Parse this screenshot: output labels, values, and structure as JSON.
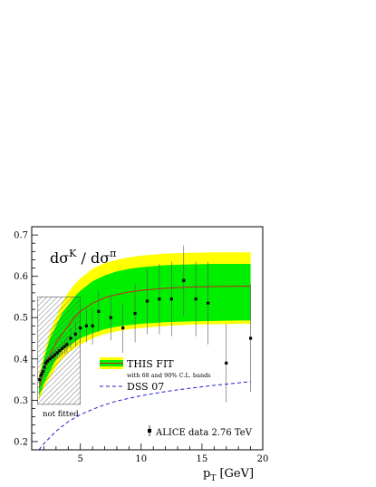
{
  "chart_data": {
    "type": "line",
    "title_main": "dσ",
    "title_sup1": "K",
    "title_sep": " / dσ",
    "title_sup2": "π",
    "xlabel_main": "p",
    "xlabel_sub": "T",
    "xlabel_unit": " [GeV]",
    "xlim": [
      1,
      20
    ],
    "ylim": [
      0.18,
      0.72
    ],
    "x_ticks": [
      5,
      10,
      15,
      20
    ],
    "y_ticks": [
      0.2,
      0.3,
      0.4,
      0.5,
      0.6,
      0.7
    ],
    "not_fitted_region": {
      "x_range": [
        1.5,
        5.0
      ],
      "y_range": [
        0.29,
        0.55
      ],
      "label": "not fitted"
    },
    "legend": {
      "this_fit": "THIS FIT",
      "this_fit_sub": "with 68 and 90% C.L. bands",
      "dss": "DSS 07",
      "alice": "ALICE data 2.76 TeV"
    },
    "colors": {
      "band90": "#ffff00",
      "band68": "#00ee00",
      "fit_line": "#cc2222",
      "dss_line": "#2222cc",
      "data": "#000000",
      "hatch": "#555555"
    },
    "series": [
      {
        "name": "THIS FIT",
        "x": [
          1.6,
          2.0,
          2.5,
          3.0,
          3.5,
          4.0,
          4.5,
          5.0,
          6.0,
          7.0,
          8.0,
          9.0,
          10.0,
          12.0,
          14.0,
          16.0,
          18.0,
          19.0
        ],
        "y": [
          0.33,
          0.37,
          0.41,
          0.44,
          0.46,
          0.48,
          0.5,
          0.515,
          0.535,
          0.548,
          0.556,
          0.562,
          0.566,
          0.571,
          0.574,
          0.575,
          0.576,
          0.576
        ],
        "y68_lo": [
          0.31,
          0.34,
          0.37,
          0.4,
          0.42,
          0.43,
          0.44,
          0.45,
          0.462,
          0.472,
          0.478,
          0.482,
          0.485,
          0.489,
          0.491,
          0.492,
          0.493,
          0.493
        ],
        "y68_hi": [
          0.35,
          0.4,
          0.45,
          0.48,
          0.51,
          0.53,
          0.55,
          0.565,
          0.588,
          0.602,
          0.612,
          0.618,
          0.622,
          0.627,
          0.629,
          0.63,
          0.63,
          0.63
        ],
        "y90_lo": [
          0.3,
          0.33,
          0.355,
          0.38,
          0.4,
          0.415,
          0.425,
          0.435,
          0.45,
          0.46,
          0.467,
          0.472,
          0.475,
          0.48,
          0.483,
          0.484,
          0.485,
          0.485
        ],
        "y90_hi": [
          0.36,
          0.41,
          0.465,
          0.5,
          0.535,
          0.56,
          0.58,
          0.595,
          0.618,
          0.632,
          0.64,
          0.646,
          0.65,
          0.655,
          0.657,
          0.658,
          0.658,
          0.658
        ]
      },
      {
        "name": "DSS 07",
        "x": [
          1.6,
          2.0,
          3.0,
          4.0,
          5.0,
          6.0,
          7.0,
          8.0,
          10.0,
          12.0,
          14.0,
          16.0,
          18.0,
          19.0
        ],
        "y": [
          0.18,
          0.195,
          0.225,
          0.248,
          0.265,
          0.278,
          0.289,
          0.298,
          0.311,
          0.321,
          0.329,
          0.336,
          0.342,
          0.345
        ]
      },
      {
        "name": "ALICE data 2.76 TeV",
        "x": [
          1.65,
          1.75,
          1.85,
          1.95,
          2.05,
          2.15,
          2.3,
          2.5,
          2.7,
          2.9,
          3.1,
          3.3,
          3.5,
          3.7,
          3.9,
          4.2,
          4.6,
          5.0,
          5.5,
          6.0,
          6.5,
          7.5,
          8.5,
          9.5,
          10.5,
          11.5,
          12.5,
          13.5,
          14.5,
          15.5,
          17.0,
          19.0
        ],
        "y": [
          0.35,
          0.36,
          0.365,
          0.37,
          0.38,
          0.39,
          0.395,
          0.4,
          0.405,
          0.41,
          0.415,
          0.42,
          0.425,
          0.43,
          0.435,
          0.45,
          0.46,
          0.475,
          0.48,
          0.48,
          0.515,
          0.5,
          0.475,
          0.51,
          0.54,
          0.545,
          0.545,
          0.59,
          0.545,
          0.535,
          0.39,
          0.45
        ],
        "err": [
          0.01,
          0.01,
          0.01,
          0.01,
          0.012,
          0.012,
          0.012,
          0.013,
          0.013,
          0.014,
          0.015,
          0.016,
          0.017,
          0.018,
          0.02,
          0.025,
          0.03,
          0.035,
          0.04,
          0.045,
          0.05,
          0.055,
          0.06,
          0.07,
          0.08,
          0.085,
          0.09,
          0.085,
          0.09,
          0.1,
          0.095,
          0.13
        ]
      }
    ]
  }
}
